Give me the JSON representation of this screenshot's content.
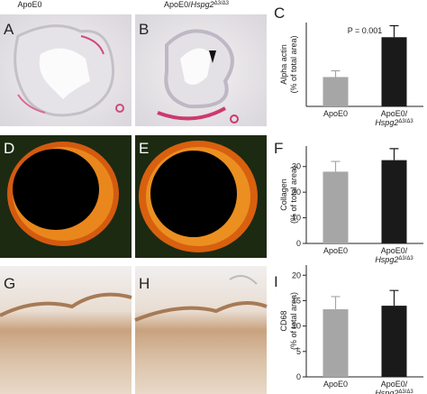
{
  "column_headers": [
    "ApoE0",
    "ApoE0/Hspg2Δ3/Δ3"
  ],
  "panels": [
    "A",
    "B",
    "C",
    "D",
    "E",
    "F",
    "G",
    "H",
    "I"
  ],
  "chart_data": [
    {
      "type": "bar",
      "ylabel": [
        "Alpha actin",
        "(% of total area)"
      ],
      "annotation": "P = 0.001",
      "categories": [
        "ApoE0",
        "ApoE0/Hspg2Δ3/Δ3"
      ],
      "values": [
        1.4,
        3.3
      ],
      "errors": [
        0.3,
        0.55
      ],
      "colors": [
        "#a6a6a6",
        "#1a1a1a"
      ],
      "ylim": [
        0,
        4
      ]
    },
    {
      "type": "bar",
      "ylabel": [
        "Collagen",
        "(% of total area)"
      ],
      "categories": [
        "ApoE0",
        "ApoE0/Hspg2Δ3/Δ3"
      ],
      "values": [
        28,
        32.5
      ],
      "errors": [
        4,
        4.5
      ],
      "colors": [
        "#a6a6a6",
        "#1a1a1a"
      ],
      "ylim": [
        0,
        38
      ],
      "yticks": [
        0,
        10,
        20,
        30
      ]
    },
    {
      "type": "bar",
      "ylabel": [
        "CD68",
        "(% of total area)"
      ],
      "categories": [
        "ApoE0",
        "ApoE0/Hspg2Δ3/Δ3"
      ],
      "values": [
        13.3,
        14
      ],
      "errors": [
        2.5,
        3
      ],
      "colors": [
        "#a6a6a6",
        "#1a1a1a"
      ],
      "ylim": [
        0,
        22
      ],
      "yticks": [
        0,
        5,
        10,
        15,
        20
      ]
    }
  ]
}
